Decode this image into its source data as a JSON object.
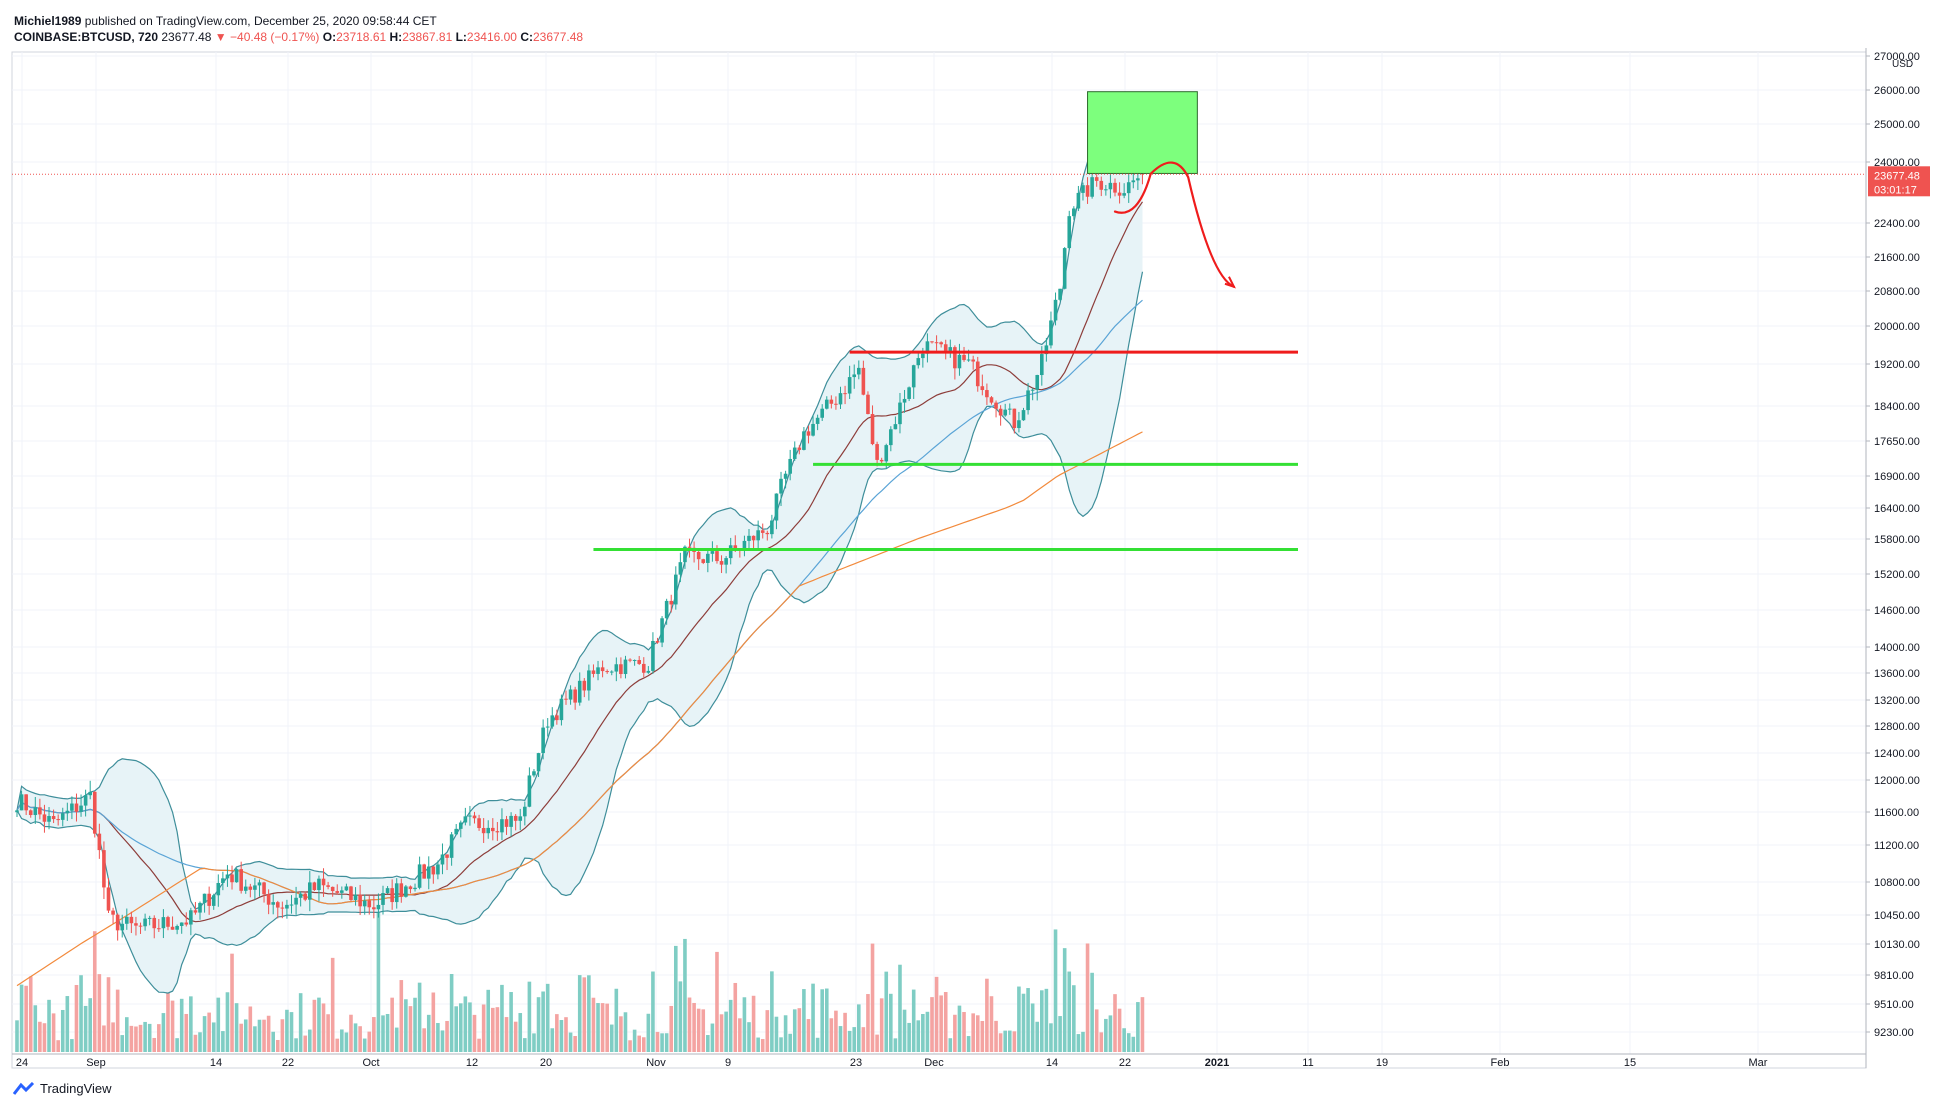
{
  "header": {
    "author": "Michiel1989",
    "published": "published on TradingView.com, December 25, 2020 09:58:44 CET",
    "symbol": "COINBASE:BTCUSD, 720",
    "last": "23677.48",
    "change_arrow": "▼",
    "change": "−40.48 (−0.17%)",
    "o_label": "O:",
    "o": "23718.61",
    "h_label": "H:",
    "h": "23867.81",
    "l_label": "L:",
    "l": "23416.00",
    "c_label": "C:",
    "c": "23677.48"
  },
  "footer": {
    "brand": "TradingView"
  },
  "colors": {
    "up": "#26a69a",
    "down": "#ef5350",
    "vol_up": "#7fcdc4",
    "vol_down": "#f4a3a1",
    "bb": "#3e8e9a",
    "bb_fill": "#e7f3f7",
    "sma_fast": "#8d3d3a",
    "sma_mid": "#5aa4d6",
    "sma_slow": "#f28a3c",
    "resistance": "#ef1c1c",
    "support": "#34e034",
    "target_box": "#7dff7d",
    "projection": "#ef1c1c"
  },
  "chart_data": {
    "type": "candlestick",
    "title": "",
    "axis_label": "USD",
    "last_price_label": "23677.48",
    "countdown_label": "03:01:17",
    "y_ticks": [
      "27000.00",
      "26000.00",
      "25000.00",
      "24000.00",
      "22400.00",
      "21600.00",
      "20800.00",
      "20000.00",
      "19200.00",
      "18400.00",
      "17650.00",
      "16900.00",
      "16400.00",
      "15800.00",
      "15200.00",
      "14600.00",
      "14000.00",
      "13600.00",
      "13200.00",
      "12800.00",
      "12400.00",
      "12000.00",
      "11600.00",
      "11200.00",
      "10800.00",
      "10450.00",
      "10130.00",
      "9810.00",
      "9510.00",
      "9230.00"
    ],
    "x_ticks": [
      "24",
      "Sep",
      "14",
      "22",
      "Oct",
      "12",
      "20",
      "Nov",
      "9",
      "23",
      "Dec",
      "14",
      "22",
      "2021",
      "11",
      "19",
      "Feb",
      "15",
      "Mar"
    ],
    "ohlc_anchor_closes": [
      [
        "Aug 24",
        11750
      ],
      [
        "Aug 28",
        11450
      ],
      [
        "Sep 1",
        11800
      ],
      [
        "Sep 3",
        10400
      ],
      [
        "Sep 6",
        10300
      ],
      [
        "Sep 12",
        10400
      ],
      [
        "Sep 16",
        10900
      ],
      [
        "Sep 22",
        10550
      ],
      [
        "Sep 26",
        10750
      ],
      [
        "Oct 2",
        10550
      ],
      [
        "Oct 9",
        11000
      ],
      [
        "Oct 12",
        11450
      ],
      [
        "Oct 18",
        11500
      ],
      [
        "Oct 21",
        12900
      ],
      [
        "Oct 27",
        13700
      ],
      [
        "Nov 1",
        13750
      ],
      [
        "Nov 5",
        15500
      ],
      [
        "Nov 9",
        15450
      ],
      [
        "Nov 14",
        16000
      ],
      [
        "Nov 18",
        17800
      ],
      [
        "Nov 24",
        19100
      ],
      [
        "Nov 26",
        17150
      ],
      [
        "Dec 1",
        19600
      ],
      [
        "Dec 6",
        19200
      ],
      [
        "Dec 11",
        18050
      ],
      [
        "Dec 14",
        19200
      ],
      [
        "Dec 16",
        20900
      ],
      [
        "Dec 17",
        22800
      ],
      [
        "Dec 20",
        23500
      ],
      [
        "Dec 23",
        23300
      ],
      [
        "Dec 25",
        23677
      ]
    ],
    "annotations": {
      "resistance_level": 19450,
      "support_levels": [
        17150,
        15620
      ],
      "target_zone": {
        "from_date": "Dec 19",
        "to_date": "Dec 31",
        "low": 23700,
        "high": 25950
      },
      "projection_path": [
        [
          "Dec 22",
          22700
        ],
        [
          "Dec 27",
          23850
        ],
        [
          "Dec 30",
          23600
        ],
        [
          "Jan 4",
          20900
        ]
      ]
    },
    "grid": true,
    "legend": "none"
  }
}
